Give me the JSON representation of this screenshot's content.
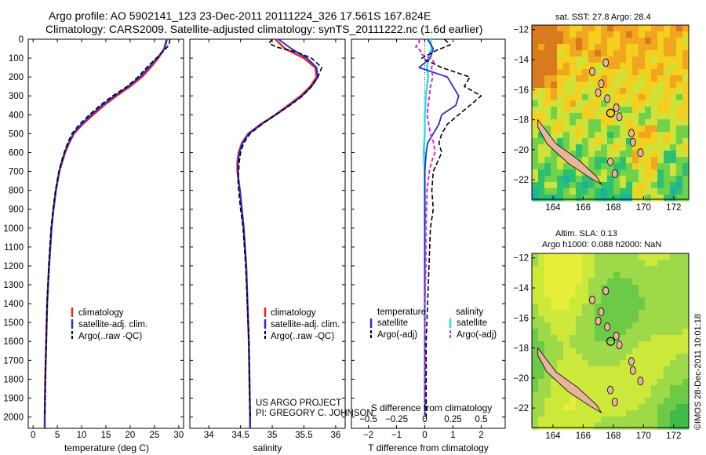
{
  "title_line1": "Argo profile: AO 5902141_123 23-Dec-2011 20111224_326 17.561S 167.824E",
  "title_line2": "Climatology: CARS2009. Satellite-adjusted climatology: synTS_20111222.nc (1.6d earlier)",
  "project_line1": "US ARGO PROJECT",
  "project_line2": "PI: GREGORY C. JOHNSON",
  "timestamp": "©IMOS 28-Dec-2011 10:01:18",
  "colors": {
    "clim": "#e8251f",
    "sat": "#1f2fd9",
    "argo": "#000000",
    "tsat": "#1f2fd9",
    "ssat": "#29e0e8",
    "sargo": "#e020e0"
  },
  "depth_ticks": [
    "0",
    "100",
    "200",
    "300",
    "400",
    "500",
    "600",
    "700",
    "800",
    "900",
    "1000",
    "1100",
    "1200",
    "1300",
    "1400",
    "1500",
    "1600",
    "1700",
    "1800",
    "1900",
    "2000"
  ],
  "chart_data": [
    {
      "type": "line",
      "name": "temperature",
      "xlabel": "temperature (deg C)",
      "ylabel": "depth",
      "xlim": [
        -1,
        31
      ],
      "ylim": [
        2060,
        0
      ],
      "xticks": [
        "0",
        "5",
        "10",
        "15",
        "20",
        "25",
        "30"
      ],
      "legend": [
        "climatology",
        "satellite-adj. clim.",
        "Argo(..raw -QC)"
      ],
      "series": [
        {
          "name": "climatology",
          "depth": [
            0,
            50,
            100,
            150,
            200,
            250,
            300,
            350,
            400,
            450,
            500,
            550,
            600,
            650,
            700,
            800,
            900,
            1000,
            1200,
            1400,
            1600,
            1800,
            2000,
            2060
          ],
          "values": [
            27.5,
            27.0,
            25.8,
            24.2,
            22.4,
            20.0,
            17.2,
            14.6,
            12.4,
            10.2,
            8.4,
            7.4,
            6.6,
            6.0,
            5.4,
            4.7,
            4.2,
            3.8,
            3.3,
            2.9,
            2.7,
            2.5,
            2.4,
            2.4
          ]
        },
        {
          "name": "satellite-adj. clim.",
          "depth": [
            0,
            50,
            100,
            150,
            200,
            250,
            300,
            350,
            400,
            450,
            500,
            550,
            600,
            650,
            700,
            800,
            900,
            1000,
            1200,
            1400,
            1600,
            1800,
            2000,
            2060
          ],
          "values": [
            27.6,
            27.1,
            25.5,
            23.8,
            22.0,
            19.6,
            16.8,
            14.2,
            12.0,
            10.0,
            8.3,
            7.3,
            6.5,
            5.9,
            5.4,
            4.7,
            4.2,
            3.8,
            3.3,
            2.9,
            2.7,
            2.5,
            2.4,
            2.4
          ]
        },
        {
          "name": "Argo(..raw -QC)",
          "depth": [
            0,
            30,
            60,
            100,
            150,
            200,
            250,
            300,
            350,
            400,
            450,
            500,
            550,
            600,
            650,
            700,
            800,
            900,
            1000,
            1200,
            1400,
            1600,
            1800,
            2000
          ],
          "values": [
            28.2,
            28.0,
            27.0,
            25.4,
            23.4,
            21.6,
            19.4,
            16.4,
            13.8,
            11.6,
            9.6,
            8.0,
            7.1,
            6.4,
            5.8,
            5.3,
            4.6,
            4.1,
            3.7,
            3.2,
            2.9,
            2.7,
            2.5,
            2.4
          ]
        }
      ]
    },
    {
      "type": "line",
      "name": "salinity",
      "xlabel": "salinity",
      "xlim": [
        33.7,
        36.15
      ],
      "ylim": [
        2060,
        0
      ],
      "xticks": [
        "34",
        "34.5",
        "35",
        "35.5",
        "36"
      ],
      "legend": [
        "climatology",
        "satellite-adj. clim.",
        "Argo(..raw -QC)"
      ],
      "series": [
        {
          "name": "climatology",
          "depth": [
            0,
            50,
            100,
            150,
            200,
            250,
            300,
            350,
            400,
            450,
            500,
            550,
            600,
            650,
            700,
            750,
            800,
            900,
            1000,
            1200,
            1400,
            1600,
            1800,
            2000,
            2060
          ],
          "values": [
            35.05,
            35.2,
            35.5,
            35.68,
            35.7,
            35.6,
            35.45,
            35.25,
            35.05,
            34.82,
            34.62,
            34.52,
            34.47,
            34.45,
            34.45,
            34.47,
            34.49,
            34.52,
            34.55,
            34.59,
            34.61,
            34.63,
            34.64,
            34.65,
            34.65
          ]
        },
        {
          "name": "satellite-adj. clim.",
          "depth": [
            0,
            50,
            100,
            150,
            200,
            250,
            300,
            350,
            400,
            450,
            500,
            550,
            600,
            650,
            700,
            750,
            800,
            900,
            1000,
            1200,
            1400,
            1600,
            1800,
            2000,
            2060
          ],
          "values": [
            35.1,
            35.3,
            35.55,
            35.7,
            35.72,
            35.62,
            35.47,
            35.27,
            35.06,
            34.83,
            34.63,
            34.53,
            34.48,
            34.46,
            34.46,
            34.47,
            34.49,
            34.52,
            34.55,
            34.59,
            34.61,
            34.63,
            34.64,
            34.65,
            34.65
          ]
        },
        {
          "name": "Argo(..raw -QC)",
          "depth": [
            0,
            20,
            40,
            70,
            100,
            150,
            200,
            250,
            300,
            350,
            400,
            450,
            500,
            550,
            600,
            650,
            700,
            750,
            800,
            900,
            1000,
            1200,
            1400,
            1600,
            1800,
            2000
          ],
          "values": [
            35.0,
            34.95,
            35.05,
            35.4,
            35.62,
            35.78,
            35.72,
            35.62,
            35.48,
            35.28,
            35.05,
            34.84,
            34.65,
            34.55,
            34.5,
            34.48,
            34.47,
            34.46,
            34.47,
            34.5,
            34.54,
            34.58,
            34.61,
            34.63,
            34.64,
            34.65
          ]
        }
      ]
    },
    {
      "type": "line",
      "name": "difference",
      "xlabel_bottom": "T difference from climatology",
      "xlabel_top": "S difference from climatology",
      "xlim": [
        -2.6,
        2.85
      ],
      "ylim": [
        2060,
        0
      ],
      "xticks": [
        "−2",
        "−1",
        "0",
        "1",
        "2"
      ],
      "xticks_s": [
        "−0.5",
        "−0.25",
        "0",
        "0.25",
        "0.5"
      ],
      "legend_temperature_title": "temperature",
      "legend_salinity_title": "salinity",
      "legend_labels": [
        "satellite",
        "Argo(-adj)"
      ],
      "series": [
        {
          "name": "temperature satellite",
          "depth": [
            0,
            50,
            100,
            150,
            200,
            250,
            300,
            350,
            400,
            450,
            500,
            550,
            600,
            700,
            800,
            900,
            1000,
            1200,
            1400,
            1600,
            1800,
            2000
          ],
          "values": [
            0.1,
            0.3,
            0.2,
            -0.2,
            0.8,
            1.0,
            1.2,
            1.1,
            0.6,
            0.5,
            0.3,
            0.1,
            0.05,
            0.0,
            0.0,
            0.0,
            0.0,
            0.0,
            0.0,
            0.0,
            0.0,
            0.0
          ]
        },
        {
          "name": "temperature Argo(-adj)",
          "depth": [
            0,
            30,
            60,
            100,
            150,
            200,
            250,
            300,
            350,
            400,
            450,
            500,
            550,
            600,
            700,
            800,
            900,
            1000,
            1200,
            1400,
            1600,
            1800,
            2000
          ],
          "values": [
            0.7,
            0.9,
            0.4,
            -0.1,
            0.6,
            1.6,
            1.4,
            2.0,
            1.6,
            1.2,
            0.8,
            0.6,
            0.5,
            0.6,
            0.3,
            0.25,
            0.3,
            0.2,
            0.15,
            0.1,
            0.05,
            0.05,
            0.05
          ]
        },
        {
          "name": "salinity satellite",
          "depth": [
            0,
            50,
            100,
            150,
            200,
            300,
            400,
            500,
            600,
            700,
            800,
            1000,
            1200,
            1400,
            1600,
            1800,
            2000
          ],
          "values": [
            0.05,
            0.06,
            0.03,
            0.02,
            0.03,
            0.01,
            0.0,
            0.0,
            -0.01,
            0.0,
            0.0,
            0.0,
            0.0,
            0.0,
            0.0,
            0.0,
            0.0
          ]
        },
        {
          "name": "salinity Argo(-adj)",
          "depth": [
            0,
            20,
            40,
            60,
            80,
            100,
            120,
            150,
            200,
            250,
            300,
            400,
            500,
            550,
            600,
            650,
            700,
            800,
            1000,
            1200,
            1400,
            1600,
            1800,
            2000
          ],
          "values": [
            -0.05,
            -0.05,
            -0.08,
            -0.04,
            -0.03,
            0.05,
            0.08,
            0.06,
            0.07,
            0.05,
            0.04,
            0.02,
            0.05,
            0.08,
            0.09,
            0.06,
            0.04,
            0.02,
            0.01,
            0.01,
            0.0,
            0.0,
            0.0,
            0.0
          ]
        }
      ]
    },
    {
      "type": "heatmap",
      "name": "sst map",
      "title": "sat. SST: 27.8  Argo: 28.4",
      "xticks": [
        "164",
        "166",
        "168",
        "170",
        "172"
      ],
      "yticks": [
        "−12",
        "−14",
        "−16",
        "−18",
        "−20",
        "−22"
      ],
      "xlim": [
        162.6,
        173.0
      ],
      "ylim": [
        -23.3,
        -11.7
      ],
      "argo_position": [
        167.824,
        -17.561
      ]
    },
    {
      "type": "heatmap",
      "name": "sla map",
      "title_line1": "Altim. SLA: 0.13",
      "title_line2": "Argo h1000: 0.088  h2000: NaN",
      "xticks": [
        "164",
        "166",
        "168",
        "170",
        "172"
      ],
      "yticks": [
        "−12",
        "−14",
        "−16",
        "−18",
        "−20",
        "−22"
      ],
      "xlim": [
        162.6,
        173.0
      ],
      "ylim": [
        -23.3,
        -11.7
      ],
      "argo_position": [
        167.824,
        -17.561
      ]
    }
  ]
}
